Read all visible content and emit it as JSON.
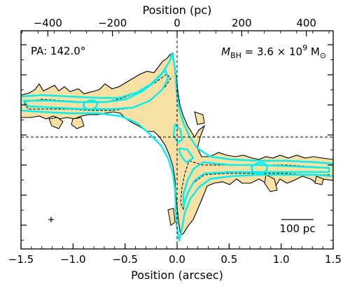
{
  "chart_data": {
    "type": "contour",
    "xlabel": "Position (arcsec)",
    "top_xlabel": "Position (pc)",
    "ylabel": "",
    "xlim": [
      -1.5,
      1.5
    ],
    "top_xlim": [
      -483,
      483
    ],
    "x_ticks": [
      -1.5,
      -1.0,
      -0.5,
      0.0,
      0.5,
      1.0,
      1.5
    ],
    "x_tick_labels": [
      "−1.5",
      "−1.0",
      "−0.5",
      "0.0",
      "0.5",
      "1.0",
      "1.5"
    ],
    "top_ticks": [
      -400,
      -200,
      0,
      200,
      400
    ],
    "top_tick_labels": [
      "−400",
      "−200",
      "0",
      "200",
      "400"
    ],
    "pa_label": "PA: 142.0°",
    "mbh_label_prefix": "M",
    "mbh_label_sub": "BH",
    "mbh_label_value": " = 3.6 × 10",
    "mbh_label_exp": "9",
    "mbh_label_unit": " M",
    "mbh_label_unit_sub": "⊙",
    "scalebar_label": "100 pc",
    "colors": {
      "data_fill": "#f7e0a3",
      "data_contour": "#000000",
      "model_contour": "#00f0f0",
      "guide_lines": "#000000"
    },
    "systemic_velocity_line": 0.0,
    "center_position_line": 0.0
  }
}
